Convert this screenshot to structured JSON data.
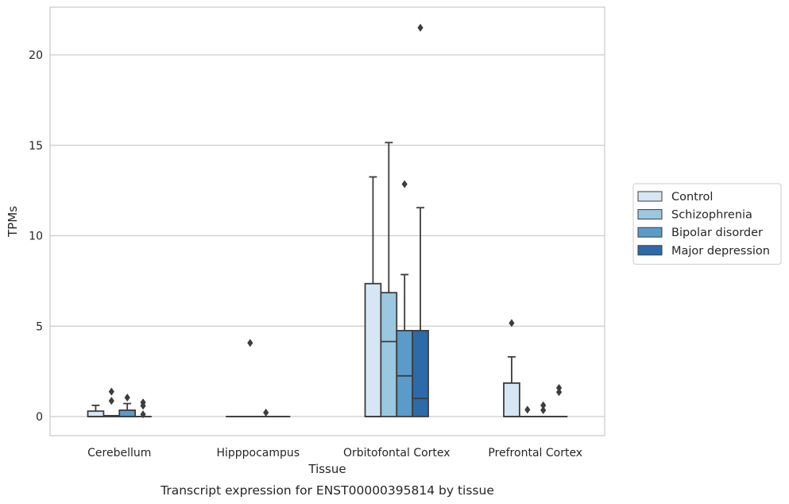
{
  "caption": "Transcript expression for ENST00000395814 by tissue",
  "chart_data": {
    "type": "box",
    "xlabel": "Tissue",
    "ylabel": "TPMs",
    "ylim": [
      -1.05,
      22.6
    ],
    "yticks": [
      0,
      5,
      10,
      15,
      20
    ],
    "grid": true,
    "legend_position": "right",
    "categories": [
      "Cerebellum",
      "Hipppocampus",
      "Orbitofontal Cortex",
      "Prefrontal Cortex"
    ],
    "series": [
      {
        "name": "Control",
        "color": "#d6e6f4",
        "boxes": [
          {
            "whislo": 0,
            "q1": 0,
            "med": 0,
            "q3": 0.3,
            "whishi": 0.62,
            "fliers": []
          },
          {
            "whislo": 0,
            "q1": 0,
            "med": 0,
            "q3": 0,
            "whishi": 0,
            "fliers": []
          },
          {
            "whislo": 0,
            "q1": 0,
            "med": 0,
            "q3": 7.35,
            "whishi": 13.25,
            "fliers": []
          },
          {
            "whislo": 0,
            "q1": 0,
            "med": 0,
            "q3": 1.85,
            "whishi": 3.3,
            "fliers": [
              5.17
            ]
          }
        ]
      },
      {
        "name": "Schizophrenia",
        "color": "#9ac8e0",
        "boxes": [
          {
            "whislo": 0,
            "q1": 0,
            "med": 0,
            "q3": 0.05,
            "whishi": 0.05,
            "fliers": [
              1.38,
              0.87
            ]
          },
          {
            "whislo": 0,
            "q1": 0,
            "med": 0,
            "q3": 0,
            "whishi": 0,
            "fliers": [
              4.07
            ]
          },
          {
            "whislo": 0,
            "q1": 0,
            "med": 4.15,
            "q3": 6.85,
            "whishi": 15.15,
            "fliers": []
          },
          {
            "whislo": 0,
            "q1": 0,
            "med": 0,
            "q3": 0,
            "whishi": 0,
            "fliers": [
              0.38
            ]
          }
        ]
      },
      {
        "name": "Bipolar disorder",
        "color": "#5a9bc9",
        "boxes": [
          {
            "whislo": 0,
            "q1": 0,
            "med": 0,
            "q3": 0.35,
            "whishi": 0.72,
            "fliers": [
              1.05
            ]
          },
          {
            "whislo": 0,
            "q1": 0,
            "med": 0,
            "q3": 0,
            "whishi": 0,
            "fliers": [
              0.22
            ]
          },
          {
            "whislo": 0,
            "q1": 0,
            "med": 2.25,
            "q3": 4.75,
            "whishi": 7.85,
            "fliers": [
              12.85
            ]
          },
          {
            "whislo": 0,
            "q1": 0,
            "med": 0,
            "q3": 0,
            "whishi": 0,
            "fliers": [
              0.62,
              0.35
            ]
          }
        ]
      },
      {
        "name": "Major depression",
        "color": "#2c6aa9",
        "boxes": [
          {
            "whislo": 0,
            "q1": 0,
            "med": 0,
            "q3": 0,
            "whishi": 0,
            "fliers": [
              0.78,
              0.6,
              0.12
            ]
          },
          {
            "whislo": 0,
            "q1": 0,
            "med": 0,
            "q3": 0,
            "whishi": 0,
            "fliers": []
          },
          {
            "whislo": 0,
            "q1": 0,
            "med": 1.0,
            "q3": 4.75,
            "whishi": 11.55,
            "fliers": [
              21.5
            ]
          },
          {
            "whislo": 0,
            "q1": 0,
            "med": 0,
            "q3": 0,
            "whishi": 0,
            "fliers": [
              1.58,
              1.35
            ]
          }
        ]
      }
    ]
  }
}
